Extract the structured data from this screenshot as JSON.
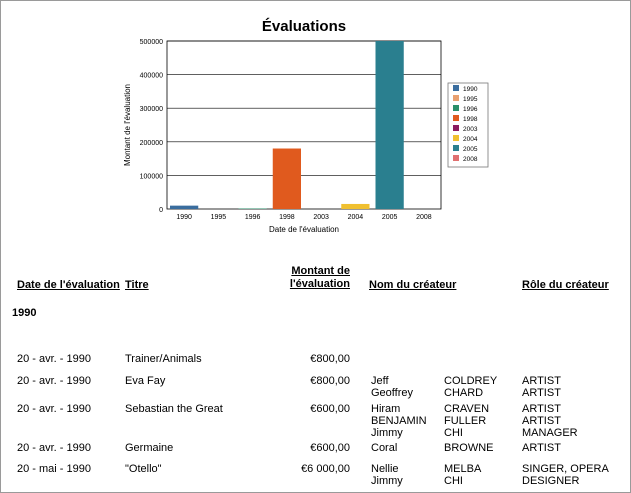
{
  "chart_data": {
    "type": "bar",
    "title": "Évaluations",
    "xlabel": "Date de l'évaluation",
    "ylabel": "Montant de l'évaluation",
    "categories": [
      "1990",
      "1995",
      "1996",
      "1998",
      "2003",
      "2004",
      "2005",
      "2008"
    ],
    "values": [
      10000,
      0,
      1500,
      180000,
      0,
      15000,
      500000,
      0
    ],
    "colors": [
      "#3a6d9e",
      "#e8a070",
      "#2a8f6a",
      "#e05a1e",
      "#8b1b60",
      "#f0c030",
      "#2a7f8f",
      "#e07070"
    ],
    "ylim": [
      0,
      500000
    ],
    "yticks": [
      "0",
      "100000",
      "200000",
      "300000",
      "400000",
      "500000"
    ],
    "legend": "right",
    "grid": true
  },
  "table": {
    "headers": {
      "date": "Date de l'évaluation",
      "title": "Titre",
      "amount_1": "Montant de",
      "amount_2": "l'évaluation",
      "creator": "Nom du créateur",
      "role": "Rôle du créateur"
    },
    "group": "1990",
    "rows": [
      {
        "date": "20 - avr. - 1990",
        "title": "Trainer/Animals",
        "amount": "€800,00",
        "first": [],
        "last": [],
        "role": []
      },
      {
        "date": "20 - avr. - 1990",
        "title": "Eva Fay",
        "amount": "€800,00",
        "first": [
          "Jeff",
          "Geoffrey"
        ],
        "last": [
          "COLDREY",
          "CHARD"
        ],
        "role": [
          "ARTIST",
          "ARTIST"
        ]
      },
      {
        "date": "20 - avr. - 1990",
        "title": "Sebastian the Great",
        "amount": "€600,00",
        "first": [
          "Hiram",
          "BENJAMIN",
          "Jimmy"
        ],
        "last": [
          "CRAVEN",
          "FULLER",
          "CHI"
        ],
        "role": [
          "ARTIST",
          "ARTIST",
          "MANAGER"
        ]
      },
      {
        "date": "20 - avr. - 1990",
        "title": "Germaine",
        "amount": "€600,00",
        "first": [
          "Coral"
        ],
        "last": [
          "BROWNE"
        ],
        "role": [
          "ARTIST"
        ]
      },
      {
        "date": "20 - mai - 1990",
        "title": "\"Otello\"",
        "amount": "€6 000,00",
        "first": [
          "Nellie",
          "Jimmy"
        ],
        "last": [
          "MELBA",
          "CHI"
        ],
        "role": [
          "SINGER, OPERA",
          "DESIGNER"
        ]
      }
    ]
  }
}
